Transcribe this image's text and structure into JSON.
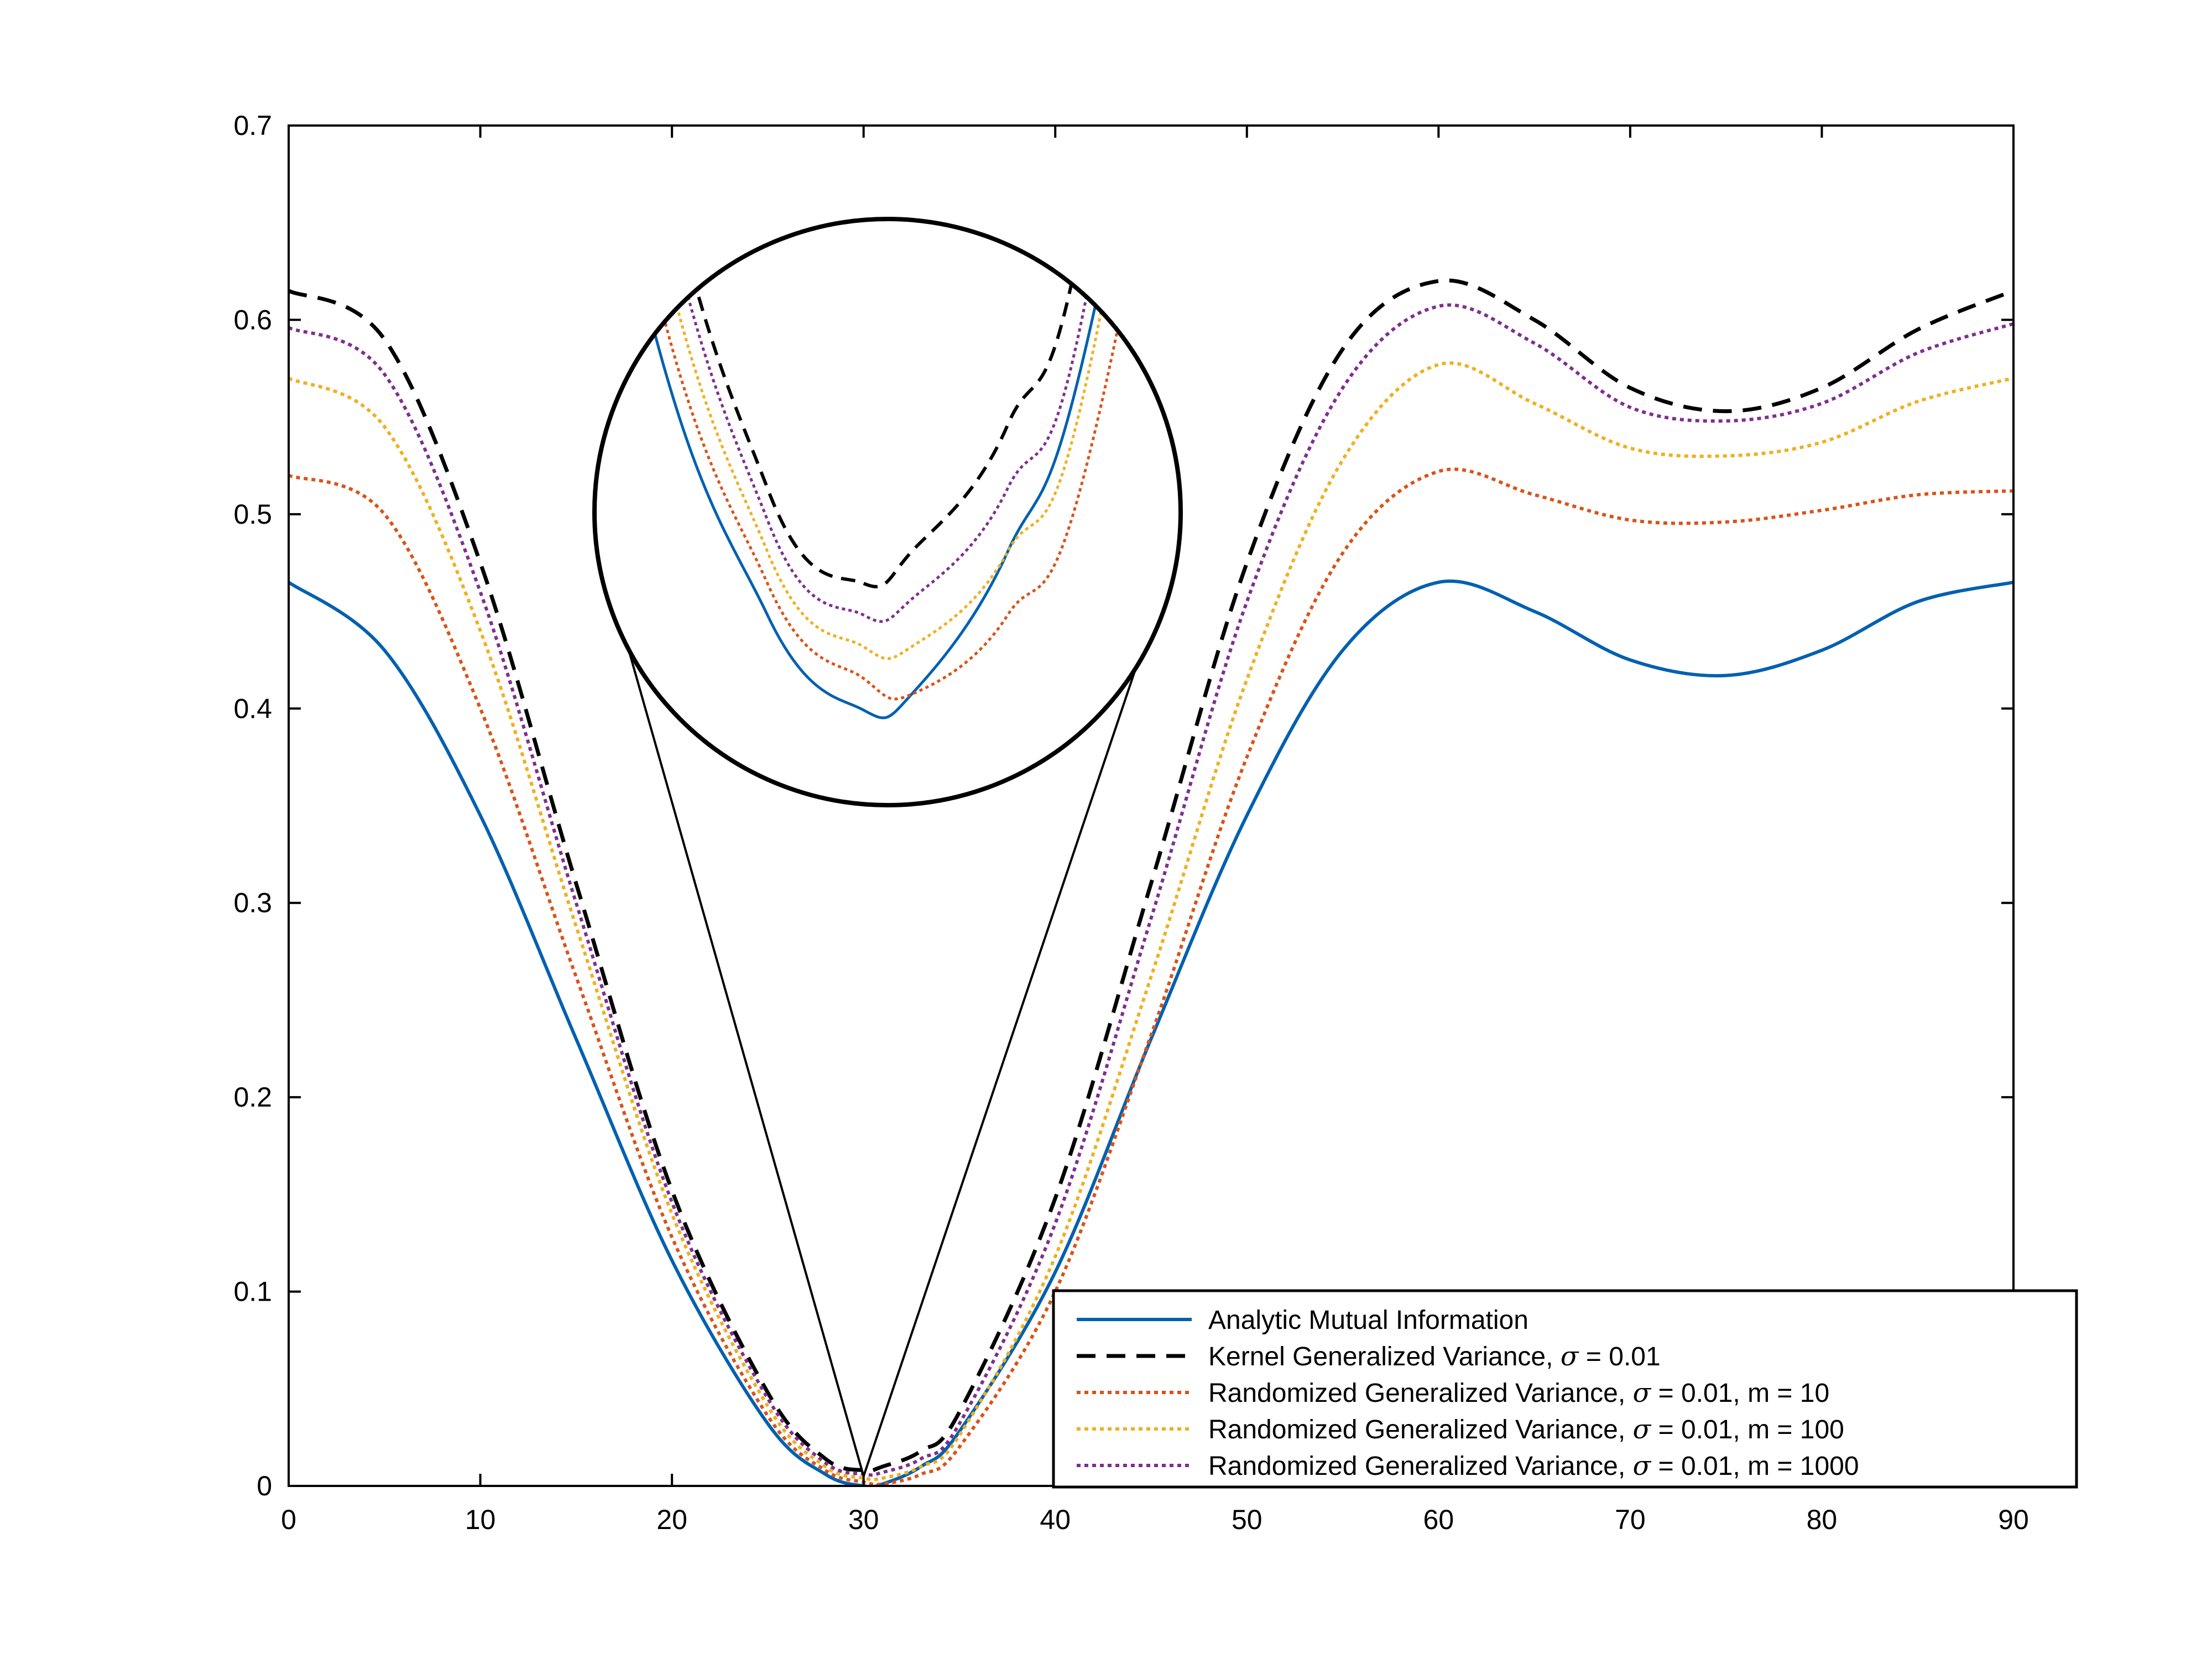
{
  "chart_data": {
    "type": "line",
    "title": "",
    "xlabel": "",
    "ylabel": "",
    "xlim": [
      0,
      90
    ],
    "ylim": [
      0,
      0.7
    ],
    "x_ticks": [
      "0",
      "10",
      "20",
      "30",
      "40",
      "50",
      "60",
      "70",
      "80",
      "90"
    ],
    "y_ticks": [
      "0",
      "0.1",
      "0.2",
      "0.3",
      "0.4",
      "0.5",
      "0.6",
      "0.7"
    ],
    "grid": false,
    "legend_position": "bottom-right",
    "x": [
      0,
      5,
      10,
      15,
      20,
      25,
      28,
      30,
      31,
      33,
      35,
      40,
      45,
      50,
      55,
      60,
      65,
      70,
      75,
      80,
      85,
      90
    ],
    "series": [
      {
        "name": "Analytic Mutual Information",
        "color": "#0060b0",
        "style": "solid",
        "values": [
          0.465,
          0.43,
          0.345,
          0.23,
          0.116,
          0.032,
          0.006,
          0.0,
          0.001,
          0.01,
          0.028,
          0.11,
          0.23,
          0.345,
          0.43,
          0.465,
          0.45,
          0.425,
          0.417,
          0.43,
          0.455,
          0.465
        ]
      },
      {
        "name": "Kernel Generalized Variance, σ = 0.01",
        "color": "#000000",
        "style": "dashed",
        "values": [
          0.615,
          0.59,
          0.475,
          0.31,
          0.152,
          0.048,
          0.014,
          0.008,
          0.01,
          0.018,
          0.038,
          0.148,
          0.31,
          0.475,
          0.585,
          0.62,
          0.6,
          0.565,
          0.553,
          0.565,
          0.595,
          0.615
        ]
      },
      {
        "name": "Randomized Generalized Variance, σ = 0.01, m = 10",
        "color": "#d95319",
        "style": "dotted",
        "values": [
          0.52,
          0.5,
          0.4,
          0.262,
          0.128,
          0.036,
          0.008,
          0.002,
          0.001,
          0.006,
          0.02,
          0.1,
          0.232,
          0.375,
          0.48,
          0.522,
          0.51,
          0.497,
          0.496,
          0.502,
          0.51,
          0.512
        ]
      },
      {
        "name": "Randomized Generalized Variance, σ = 0.01, m = 100",
        "color": "#edb120",
        "style": "dotted",
        "values": [
          0.57,
          0.545,
          0.44,
          0.288,
          0.14,
          0.041,
          0.01,
          0.004,
          0.004,
          0.01,
          0.026,
          0.118,
          0.262,
          0.415,
          0.528,
          0.577,
          0.557,
          0.534,
          0.53,
          0.537,
          0.558,
          0.57
        ]
      },
      {
        "name": "Randomized Generalized Variance, σ = 0.01, m = 1000",
        "color": "#7e2f8e",
        "style": "dotted",
        "values": [
          0.596,
          0.572,
          0.46,
          0.3,
          0.146,
          0.045,
          0.012,
          0.006,
          0.007,
          0.014,
          0.032,
          0.135,
          0.292,
          0.455,
          0.565,
          0.607,
          0.588,
          0.555,
          0.548,
          0.557,
          0.583,
          0.598
        ]
      }
    ],
    "legend": [
      {
        "pre": "Analytic Mutual Information",
        "sigma": "",
        "post": ""
      },
      {
        "pre": "Kernel Generalized Variance, ",
        "sigma": "σ",
        "post": " = 0.01"
      },
      {
        "pre": "Randomized Generalized Variance, ",
        "sigma": "σ",
        "post": " = 0.01, m = 10"
      },
      {
        "pre": "Randomized Generalized Variance, ",
        "sigma": "σ",
        "post": " = 0.01, m = 100"
      },
      {
        "pre": "Randomized Generalized Variance, ",
        "sigma": "σ",
        "post": " = 0.01, m = 1000"
      }
    ],
    "inset": {
      "type": "zoom-magnifier",
      "focus_x": 30,
      "focus_y": 0.005
    }
  }
}
